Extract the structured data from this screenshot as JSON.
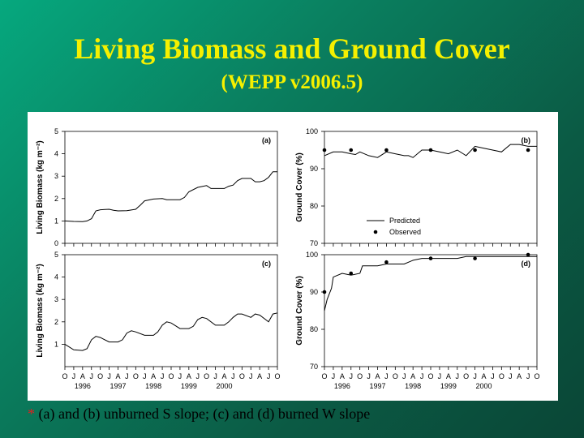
{
  "slide": {
    "title": "Living Biomass and Ground Cover",
    "subtitle": "(WEPP v2006.5)",
    "caption_marker": "*",
    "caption": "(a) and (b) unburned S slope; (c) and (d) burned W slope"
  },
  "colors": {
    "title": "#f5f000",
    "background": "#0a7f5f",
    "line": "#000000",
    "caption_marker": "#e02020"
  },
  "x_axis": {
    "month_labels": [
      "O",
      "J",
      "A",
      "J",
      "O",
      "J",
      "A",
      "J",
      "O",
      "J",
      "A",
      "J",
      "O",
      "J",
      "A",
      "J",
      "O",
      "J",
      "A",
      "J",
      "O",
      "J",
      "A",
      "J",
      "O"
    ],
    "year_labels": [
      "1996",
      "1997",
      "1998",
      "1999",
      "2000"
    ]
  },
  "chart_data": [
    {
      "id": "a",
      "panel_label": "(a)",
      "type": "line",
      "ylabel": "Living Biomass (kg m⁻²)",
      "ylim": [
        0,
        5
      ],
      "yticks": [
        "0",
        "1",
        "2",
        "3",
        "4",
        "5"
      ],
      "xlim": [
        0,
        24
      ],
      "x_unit": "months since first labeled tick",
      "series": [
        {
          "values": [
            [
              0,
              1.0
            ],
            [
              1,
              0.98
            ],
            [
              2,
              0.97
            ],
            [
              2.5,
              1.0
            ],
            [
              3,
              1.1
            ],
            [
              3.5,
              1.45
            ],
            [
              4,
              1.5
            ],
            [
              5,
              1.52
            ],
            [
              5.5,
              1.48
            ],
            [
              6,
              1.45
            ],
            [
              7,
              1.46
            ],
            [
              8,
              1.52
            ],
            [
              8.5,
              1.7
            ],
            [
              9,
              1.9
            ],
            [
              10,
              1.98
            ],
            [
              11,
              2.0
            ],
            [
              11.5,
              1.95
            ],
            [
              12,
              1.95
            ],
            [
              13,
              1.95
            ],
            [
              13.5,
              2.05
            ],
            [
              14,
              2.3
            ],
            [
              15,
              2.5
            ],
            [
              16,
              2.58
            ],
            [
              16.5,
              2.45
            ],
            [
              17,
              2.45
            ],
            [
              18,
              2.45
            ],
            [
              18.5,
              2.55
            ],
            [
              19,
              2.6
            ],
            [
              19.5,
              2.8
            ],
            [
              20,
              2.9
            ],
            [
              21,
              2.9
            ],
            [
              21.5,
              2.75
            ],
            [
              22,
              2.75
            ],
            [
              22.5,
              2.8
            ],
            [
              23,
              2.95
            ],
            [
              23.5,
              3.2
            ],
            [
              24,
              3.2
            ]
          ]
        }
      ]
    },
    {
      "id": "b",
      "panel_label": "(b)",
      "type": "line",
      "ylabel": "Ground Cover (%)",
      "ylim": [
        70,
        100
      ],
      "yticks": [
        "70",
        "80",
        "90",
        "100"
      ],
      "xlim": [
        0,
        24
      ],
      "legend": {
        "position": "bottom-center",
        "entries": [
          "Predicted",
          "Observed"
        ]
      },
      "series": [
        {
          "name": "Predicted",
          "style": "line",
          "values": [
            [
              0,
              93.5
            ],
            [
              1,
              94.5
            ],
            [
              2,
              94.5
            ],
            [
              3,
              94
            ],
            [
              3.5,
              93.8
            ],
            [
              4,
              94.5
            ],
            [
              5,
              93.5
            ],
            [
              6,
              93
            ],
            [
              7,
              94.5
            ],
            [
              8,
              94
            ],
            [
              9,
              93.5
            ],
            [
              9.5,
              93.5
            ],
            [
              10,
              93
            ],
            [
              11,
              95
            ],
            [
              12,
              95
            ],
            [
              13,
              94.5
            ],
            [
              14,
              94
            ],
            [
              15,
              95
            ],
            [
              16,
              93.5
            ],
            [
              17,
              96
            ],
            [
              18,
              95.5
            ],
            [
              19,
              95
            ],
            [
              20,
              94.5
            ],
            [
              21,
              96.5
            ],
            [
              22,
              96.5
            ],
            [
              23,
              96
            ],
            [
              24,
              96
            ]
          ]
        },
        {
          "name": "Observed",
          "style": "points",
          "values": [
            [
              0,
              95
            ],
            [
              3,
              95
            ],
            [
              7,
              95
            ],
            [
              12,
              95
            ],
            [
              17,
              95
            ],
            [
              23,
              95
            ]
          ]
        }
      ]
    },
    {
      "id": "c",
      "panel_label": "(c)",
      "type": "line",
      "ylabel": "Living Biomass (kg m⁻²)",
      "ylim": [
        0,
        5
      ],
      "yticks": [
        "1",
        "2",
        "3",
        "4",
        "5"
      ],
      "xlim": [
        0,
        24
      ],
      "series": [
        {
          "values": [
            [
              0,
              1.0
            ],
            [
              1,
              0.75
            ],
            [
              2,
              0.72
            ],
            [
              2.5,
              0.8
            ],
            [
              3,
              1.2
            ],
            [
              3.5,
              1.35
            ],
            [
              4,
              1.3
            ],
            [
              5,
              1.1
            ],
            [
              6,
              1.1
            ],
            [
              6.5,
              1.2
            ],
            [
              7,
              1.5
            ],
            [
              7.5,
              1.6
            ],
            [
              8,
              1.55
            ],
            [
              9,
              1.4
            ],
            [
              10,
              1.4
            ],
            [
              10.5,
              1.55
            ],
            [
              11,
              1.85
            ],
            [
              11.5,
              2.0
            ],
            [
              12,
              1.95
            ],
            [
              13,
              1.7
            ],
            [
              14,
              1.7
            ],
            [
              14.5,
              1.8
            ],
            [
              15,
              2.1
            ],
            [
              15.5,
              2.2
            ],
            [
              16,
              2.15
            ],
            [
              17,
              1.85
            ],
            [
              18,
              1.85
            ],
            [
              18.5,
              2.0
            ],
            [
              19,
              2.2
            ],
            [
              19.5,
              2.35
            ],
            [
              20,
              2.35
            ],
            [
              21,
              2.2
            ],
            [
              21.5,
              2.35
            ],
            [
              22,
              2.3
            ],
            [
              23,
              2.0
            ],
            [
              23.5,
              2.35
            ],
            [
              24,
              2.4
            ]
          ]
        }
      ]
    },
    {
      "id": "d",
      "panel_label": "(d)",
      "type": "line",
      "ylabel": "Ground Cover (%)",
      "ylim": [
        70,
        100
      ],
      "yticks": [
        "70",
        "80",
        "90",
        "100"
      ],
      "xlim": [
        0,
        24
      ],
      "series": [
        {
          "name": "Predicted",
          "style": "line",
          "values": [
            [
              0,
              85
            ],
            [
              0.3,
              88
            ],
            [
              0.8,
              91
            ],
            [
              1,
              94
            ],
            [
              2,
              95
            ],
            [
              3,
              94.5
            ],
            [
              4,
              95
            ],
            [
              4.3,
              97
            ],
            [
              5,
              97
            ],
            [
              6,
              97
            ],
            [
              7,
              97.5
            ],
            [
              8,
              97.5
            ],
            [
              9,
              97.5
            ],
            [
              10,
              98.5
            ],
            [
              11,
              99
            ],
            [
              12,
              99
            ],
            [
              13,
              99
            ],
            [
              14,
              99
            ],
            [
              15,
              99
            ],
            [
              16,
              99.5
            ],
            [
              17,
              99.5
            ],
            [
              18,
              99.5
            ],
            [
              19,
              99.5
            ],
            [
              20,
              99.5
            ],
            [
              21,
              99.5
            ],
            [
              22,
              99.5
            ],
            [
              23,
              99.5
            ],
            [
              24,
              99.5
            ]
          ]
        },
        {
          "name": "Observed",
          "style": "points",
          "values": [
            [
              0,
              90
            ],
            [
              3,
              95
            ],
            [
              7,
              98
            ],
            [
              12,
              99
            ],
            [
              17,
              99
            ],
            [
              23,
              100
            ]
          ]
        }
      ]
    }
  ]
}
